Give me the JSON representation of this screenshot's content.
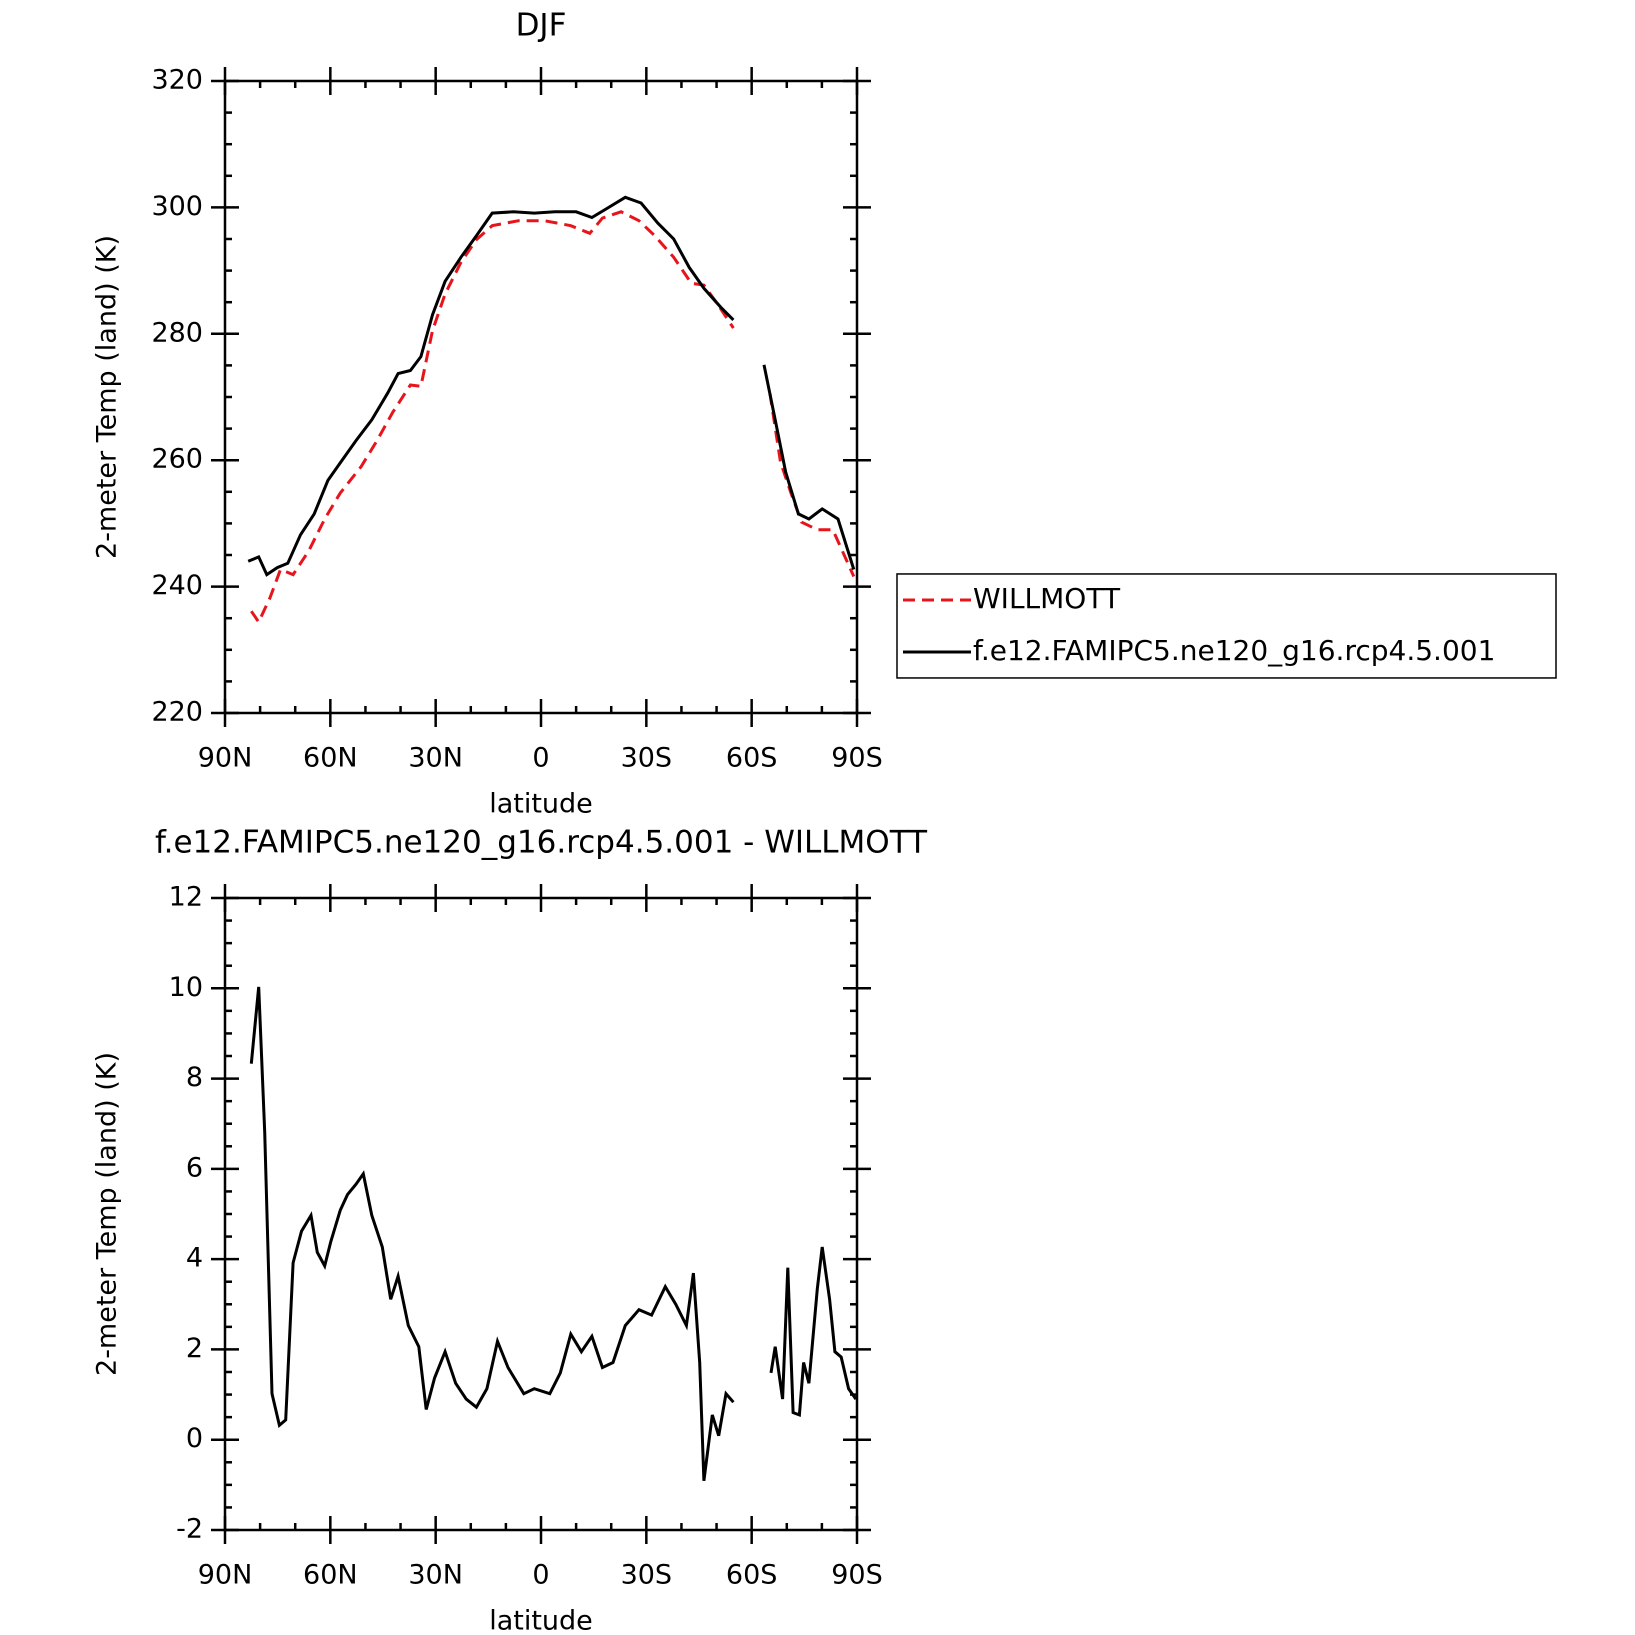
{
  "chart_data": [
    {
      "type": "line",
      "title": "DJF",
      "xlabel": "latitude",
      "ylabel": "2-meter Temp (land) (K)",
      "xlim": [
        90,
        -90
      ],
      "xticks": [
        {
          "value": 90,
          "label": "90N"
        },
        {
          "value": 60,
          "label": "60N"
        },
        {
          "value": 30,
          "label": "30N"
        },
        0,
        {
          "value": -30,
          "label": "30S"
        },
        {
          "value": -60,
          "label": "60S"
        },
        {
          "value": -90,
          "label": "90S"
        }
      ],
      "xminorticks": [
        80,
        70,
        50,
        40,
        20,
        10,
        -10,
        -20,
        -40,
        -50,
        -70,
        -80
      ],
      "ylim": [
        220,
        320
      ],
      "yticks": [
        220,
        240,
        260,
        280,
        300,
        320
      ],
      "yminorticks": [
        225,
        230,
        235,
        245,
        250,
        255,
        265,
        270,
        275,
        285,
        290,
        295,
        305,
        310,
        315
      ],
      "legend": "right",
      "series": [
        {
          "name": "WILLMOTT",
          "color": "#e8141b",
          "style": "dashed",
          "x": [
            82.5,
            80.4,
            77.2,
            74.2,
            70.6,
            66.1,
            61.6,
            57.2,
            51.2,
            46.7,
            42.2,
            37.2,
            34.2,
            30.9,
            27.3,
            22.8,
            18.4,
            13.9,
            6.4,
            -1.0,
            -8.5,
            -13.9,
            -17.5,
            -22.8,
            -27.9,
            -32.4,
            -37.8,
            -42.8,
            -46.4,
            -50.3,
            -54.8,
            -59,
            -65.2,
            -68.2,
            -71.2,
            -74.2,
            -78.7,
            -83.1,
            -89.1
          ],
          "values": [
            236.1,
            234.4,
            238.2,
            242.7,
            241.9,
            245.7,
            250.7,
            254.8,
            259.0,
            263.1,
            267.6,
            271.9,
            271.7,
            280.5,
            286.3,
            291.3,
            294.9,
            297.1,
            297.9,
            297.9,
            297.1,
            295.9,
            298.3,
            299.3,
            297.9,
            295.5,
            292.1,
            288.0,
            287.7,
            284.7,
            280.9,
            null,
            270.6,
            259.7,
            254.8,
            250.2,
            249.0,
            249.0,
            241.6
          ]
        },
        {
          "name": "f.e12.FAMIPC5.ne120_g16.rcp4.5.001",
          "color": "#000000",
          "style": "solid",
          "x": [
            83.4,
            80.4,
            78.1,
            75.1,
            72.1,
            68.5,
            64.6,
            60.7,
            56.9,
            52.7,
            48.2,
            43.7,
            40.7,
            37.2,
            34.2,
            30.9,
            27.3,
            22.8,
            18.4,
            13.9,
            7.9,
            1.9,
            -4.0,
            -10.0,
            -14.5,
            -19.0,
            -24.0,
            -28.5,
            -33.3,
            -37.8,
            -42.2,
            -46.4,
            -51.2,
            -54.8,
            -59,
            -63.5,
            -66.7,
            -69.7,
            -73.3,
            -76.3,
            -80.1,
            -84.6,
            -89.1
          ],
          "values": [
            244.0,
            244.7,
            241.9,
            243.0,
            243.7,
            248.2,
            251.5,
            256.8,
            259.8,
            263.1,
            266.4,
            270.6,
            273.7,
            274.2,
            276.4,
            283.0,
            288.3,
            292.1,
            295.5,
            299.1,
            299.3,
            299.1,
            299.3,
            299.3,
            298.4,
            299.9,
            301.6,
            300.7,
            297.5,
            295.0,
            290.5,
            287.2,
            284.2,
            282.2,
            null,
            275.1,
            266.4,
            258.1,
            251.5,
            250.7,
            252.3,
            250.7,
            242.7
          ]
        }
      ]
    },
    {
      "type": "line",
      "title": "f.e12.FAMIPC5.ne120_g16.rcp4.5.001 - WILLMOTT",
      "xlabel": "latitude",
      "ylabel": "2-meter Temp (land) (K)",
      "xlim": [
        90,
        -90
      ],
      "xticks": [
        {
          "value": 90,
          "label": "90N"
        },
        {
          "value": 60,
          "label": "60N"
        },
        {
          "value": 30,
          "label": "30N"
        },
        0,
        {
          "value": -30,
          "label": "30S"
        },
        {
          "value": -60,
          "label": "60S"
        },
        {
          "value": -90,
          "label": "90S"
        }
      ],
      "xminorticks": [
        80,
        70,
        50,
        40,
        20,
        10,
        -10,
        -20,
        -40,
        -50,
        -70,
        -80
      ],
      "ylim": [
        -2,
        12
      ],
      "yticks": [
        -2,
        0,
        2,
        4,
        6,
        8,
        10,
        12
      ],
      "yminorticks": [
        -1.5,
        -1,
        -0.5,
        0.5,
        1,
        1.5,
        2.5,
        3,
        3.5,
        4.5,
        5,
        5.5,
        6.5,
        7,
        7.5,
        8.5,
        9,
        9.5,
        10.5,
        11,
        11.5
      ],
      "series": [
        {
          "color": "#000000",
          "style": "solid",
          "x": [
            82.5,
            80.4,
            78.7,
            76.6,
            74.5,
            72.7,
            70.6,
            68.2,
            65.5,
            63.7,
            61.6,
            59.9,
            57.2,
            55.1,
            52.7,
            50.6,
            48.2,
            45.2,
            42.8,
            40.7,
            37.8,
            34.8,
            32.7,
            30.3,
            27.3,
            24.3,
            21.3,
            18.4,
            15.4,
            12.4,
            9.4,
            4.9,
            1.9,
            -2.5,
            -5.5,
            -8.5,
            -11.5,
            -14.5,
            -17.5,
            -20.5,
            -24.0,
            -27.9,
            -31.5,
            -35.4,
            -38.4,
            -41.4,
            -43.4,
            -45.2,
            -46.4,
            -48.8,
            -50.6,
            -52.7,
            -54.8,
            -59,
            -65.5,
            -66.7,
            -68.8,
            -70.3,
            -71.8,
            -73.6,
            -74.8,
            -76.3,
            -78.7,
            -80.1,
            -82.2,
            -83.7,
            -85.5,
            -87.6,
            -89.7
          ],
          "values": [
            8.33,
            10.03,
            6.82,
            1.02,
            0.32,
            0.44,
            3.92,
            4.62,
            4.97,
            4.15,
            3.85,
            4.38,
            5.08,
            5.43,
            5.66,
            5.89,
            4.97,
            4.27,
            3.11,
            3.62,
            2.53,
            2.06,
            0.67,
            1.37,
            1.95,
            1.25,
            0.9,
            0.72,
            1.13,
            2.18,
            1.6,
            1.02,
            1.13,
            1.02,
            1.48,
            2.34,
            1.95,
            2.29,
            1.6,
            1.71,
            2.53,
            2.88,
            2.76,
            3.39,
            3.0,
            2.53,
            3.69,
            1.71,
            -0.91,
            0.55,
            0.09,
            1.02,
            0.83,
            null,
            1.48,
            2.06,
            0.9,
            3.81,
            0.6,
            0.55,
            1.71,
            1.25,
            3.34,
            4.27,
            3.11,
            1.95,
            1.83,
            1.13,
            0.9
          ]
        }
      ]
    }
  ]
}
